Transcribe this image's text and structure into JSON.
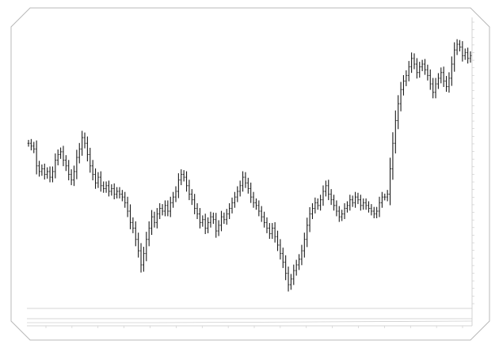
{
  "chart_data": {
    "type": "line",
    "style": "ohlc-bars",
    "title": "",
    "xlabel": "",
    "ylabel": "",
    "grid": false,
    "legend": "none",
    "x_ticks": [
      "",
      "",
      "",
      "",
      "",
      "",
      "",
      "",
      "",
      "",
      "",
      "",
      "",
      "",
      "",
      "",
      ""
    ],
    "y_ticks": [],
    "info_line": "",
    "series": [
      {
        "values": [
          0.72,
          0.71,
          0.7,
          0.64,
          0.62,
          0.63,
          0.61,
          0.62,
          0.6,
          0.62,
          0.66,
          0.68,
          0.69,
          0.66,
          0.64,
          0.61,
          0.59,
          0.62,
          0.67,
          0.7,
          0.74,
          0.72,
          0.68,
          0.64,
          0.61,
          0.58,
          0.6,
          0.57,
          0.56,
          0.57,
          0.55,
          0.56,
          0.54,
          0.55,
          0.54,
          0.53,
          0.51,
          0.48,
          0.44,
          0.42,
          0.38,
          0.34,
          0.29,
          0.33,
          0.38,
          0.42,
          0.46,
          0.44,
          0.47,
          0.49,
          0.48,
          0.5,
          0.48,
          0.51,
          0.53,
          0.55,
          0.59,
          0.61,
          0.6,
          0.57,
          0.54,
          0.52,
          0.49,
          0.47,
          0.44,
          0.45,
          0.42,
          0.44,
          0.46,
          0.45,
          0.41,
          0.43,
          0.46,
          0.45,
          0.47,
          0.49,
          0.51,
          0.53,
          0.55,
          0.57,
          0.6,
          0.58,
          0.56,
          0.53,
          0.51,
          0.5,
          0.48,
          0.46,
          0.44,
          0.42,
          0.4,
          0.42,
          0.39,
          0.36,
          0.33,
          0.3,
          0.26,
          0.22,
          0.24,
          0.27,
          0.29,
          0.31,
          0.34,
          0.38,
          0.43,
          0.47,
          0.49,
          0.51,
          0.5,
          0.52,
          0.55,
          0.57,
          0.54,
          0.52,
          0.5,
          0.48,
          0.46,
          0.47,
          0.49,
          0.5,
          0.52,
          0.51,
          0.53,
          0.52,
          0.5,
          0.51,
          0.5,
          0.49,
          0.48,
          0.47,
          0.48,
          0.51,
          0.53,
          0.53,
          0.54,
          0.63,
          0.72,
          0.8,
          0.86,
          0.91,
          0.94,
          0.96,
          0.99,
          1.02,
          1.0,
          0.97,
          0.99,
          1.0,
          0.98,
          0.96,
          0.93,
          0.9,
          0.93,
          0.95,
          0.97,
          0.94,
          0.92,
          0.95,
          1.0,
          1.05,
          1.07,
          1.06,
          1.03,
          1.04,
          1.02,
          1.03
        ]
      }
    ]
  }
}
